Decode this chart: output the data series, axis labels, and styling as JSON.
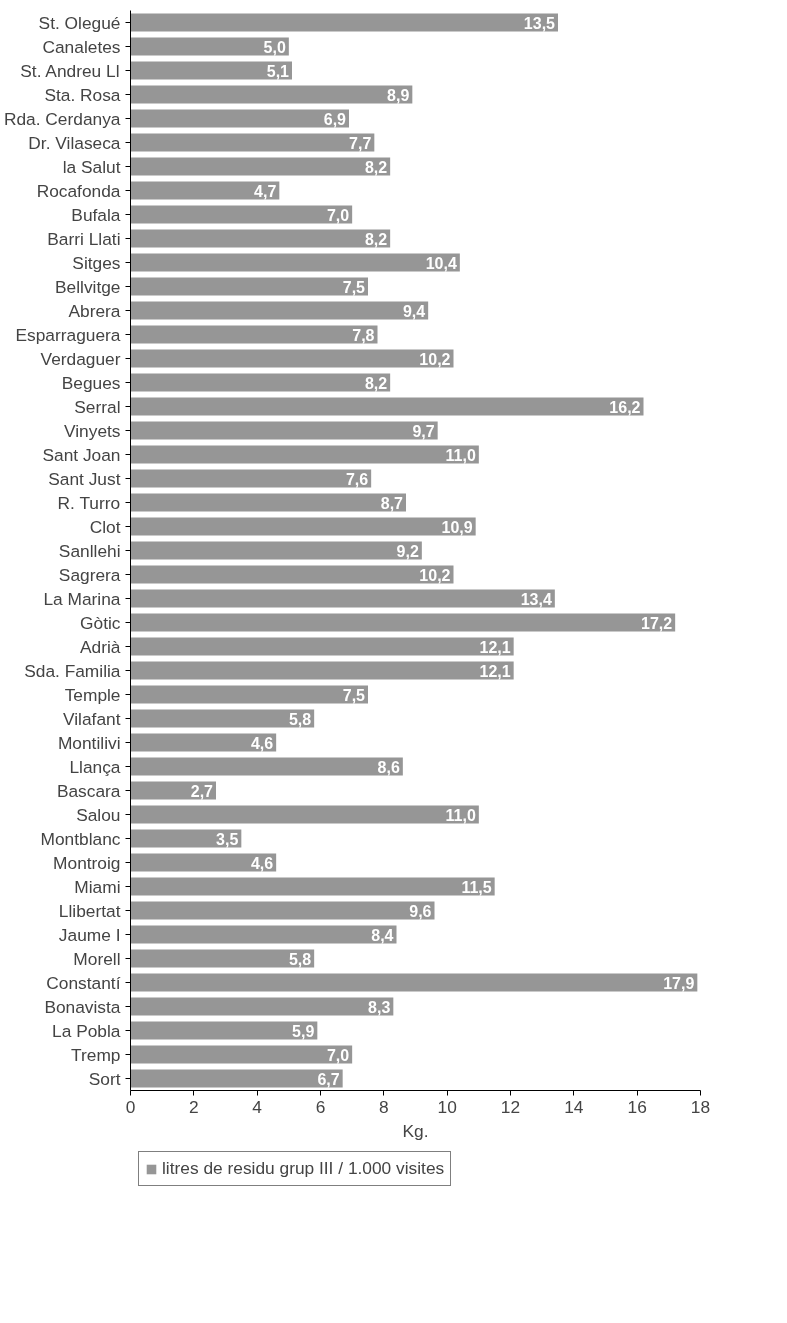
{
  "chart_data": {
    "type": "bar",
    "orientation": "horizontal",
    "categories": [
      "St. Olegué",
      "Canaletes",
      "St. Andreu Ll",
      "Sta. Rosa",
      "Rda. Cerdanya",
      "Dr. Vilaseca",
      "la Salut",
      "Rocafonda",
      "Bufala",
      "Barri Llati",
      "Sitges",
      "Bellvitge",
      "Abrera",
      "Esparraguera",
      "Verdaguer",
      "Begues",
      "Serral",
      "Vinyets",
      "Sant Joan",
      "Sant Just",
      "R. Turro",
      "Clot",
      "Sanllehi",
      "Sagrera",
      "La Marina",
      "Gòtic",
      "Adrià",
      "Sda. Familia",
      "Temple",
      "Vilafant",
      "Montilivi",
      "Llança",
      "Bascara",
      "Salou",
      "Montblanc",
      "Montroig",
      "Miami",
      "Llibertat",
      "Jaume I",
      "Morell",
      "Constantí",
      "Bonavista",
      "La Pobla",
      "Tremp",
      "Sort"
    ],
    "series": [
      {
        "name": "litres de residu grup III / 1.000 visites",
        "color": "#969696",
        "values": [
          13.5,
          5.0,
          5.1,
          8.9,
          6.9,
          7.7,
          8.2,
          4.7,
          7.0,
          8.2,
          10.4,
          7.5,
          9.4,
          7.8,
          10.2,
          8.2,
          16.2,
          9.7,
          11.0,
          7.6,
          8.7,
          10.9,
          9.2,
          10.2,
          13.4,
          17.2,
          12.1,
          12.1,
          7.5,
          5.8,
          4.6,
          8.6,
          2.7,
          11.0,
          3.5,
          4.6,
          11.5,
          9.6,
          8.4,
          5.8,
          17.9,
          8.3,
          5.9,
          7.0,
          6.7
        ],
        "value_labels": [
          "13,5",
          "5,0",
          "5,1",
          "8,9",
          "6,9",
          "7,7",
          "8,2",
          "4,7",
          "7,0",
          "8,2",
          "10,4",
          "7,5",
          "9,4",
          "7,8",
          "10,2",
          "8,2",
          "16,2",
          "9,7",
          "11,0",
          "7,6",
          "8,7",
          "10,9",
          "9,2",
          "10,2",
          "13,4",
          "17,2",
          "12,1",
          "12,1",
          "7,5",
          "5,8",
          "4,6",
          "8,6",
          "2,7",
          "11,0",
          "3,5",
          "4,6",
          "11,5",
          "9,6",
          "8,4",
          "5,8",
          "17,9",
          "8,3",
          "5,9",
          "7,0",
          "6,7"
        ]
      }
    ],
    "xlim": [
      0,
      18
    ],
    "xticks": [
      0,
      2,
      4,
      6,
      8,
      10,
      12,
      14,
      16,
      18
    ],
    "xlabel": "Kg.",
    "grid": false,
    "legend": "bottom"
  }
}
